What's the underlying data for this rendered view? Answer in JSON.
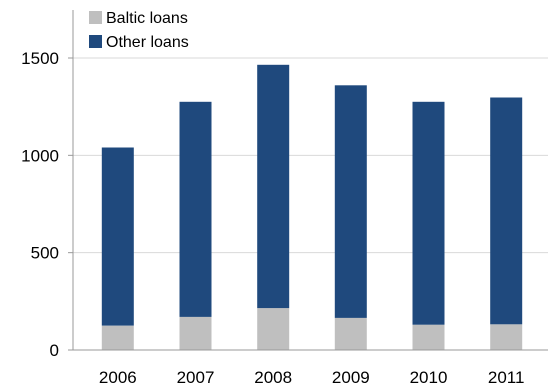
{
  "chart_data": {
    "type": "bar",
    "stacked": true,
    "title": "",
    "xlabel": "",
    "ylabel": "",
    "categories": [
      "2006",
      "2007",
      "2008",
      "2009",
      "2010",
      "2011"
    ],
    "series": [
      {
        "name": "Baltic loans",
        "color": "#bfbfbf",
        "values": [
          125,
          170,
          215,
          165,
          130,
          132
        ]
      },
      {
        "name": "Other loans",
        "color": "#1f497d",
        "values": [
          915,
          1105,
          1250,
          1195,
          1145,
          1165
        ]
      }
    ],
    "ylim": [
      0,
      1500
    ],
    "yticks": [
      "0",
      "500",
      "1000",
      "1500"
    ],
    "grid": true,
    "legend_position": "top-left"
  }
}
